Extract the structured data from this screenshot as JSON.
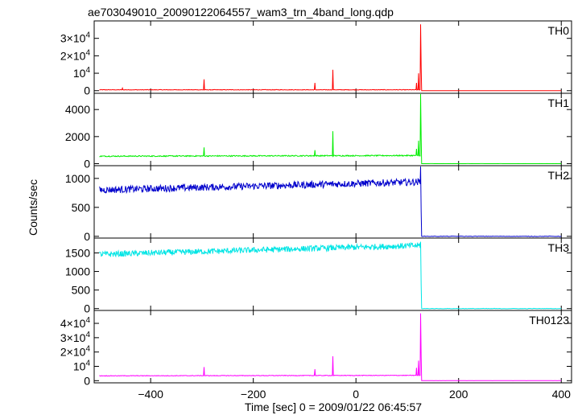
{
  "chart_data": {
    "type": "line",
    "title": "ae703049010_20090122064557_wam3_trn_4band_long.qdp",
    "xlabel": "Time [sec] 0 = 2009/01/22 06:45:57",
    "ylabel": "Counts/sec",
    "xlim": [
      -510,
      420
    ],
    "x_ticks": [
      -400,
      -200,
      0,
      200,
      400
    ],
    "grid": false,
    "panels": [
      {
        "name": "TH0",
        "color": "#ff0000",
        "ylim": [
          -1500,
          40000
        ],
        "y_ticks": [
          {
            "value": 0,
            "base": "0"
          },
          {
            "value": 10000,
            "base": "10",
            "exp": "4"
          },
          {
            "value": 20000,
            "base": "2×10",
            "exp": "4"
          },
          {
            "value": 30000,
            "base": "3×10",
            "exp": "4"
          }
        ],
        "baseline_start": 500,
        "baseline_end": 500,
        "noise": 150,
        "after_level": 0,
        "spikes": [
          {
            "x": -455,
            "y": 1500
          },
          {
            "x": -296,
            "y": 6500
          },
          {
            "x": -80,
            "y": 4500
          },
          {
            "x": -45,
            "y": 12000
          },
          {
            "x": 118,
            "y": 4500
          },
          {
            "x": 122,
            "y": 10000
          },
          {
            "x": 126,
            "y": 38000
          }
        ]
      },
      {
        "name": "TH1",
        "color": "#00ee00",
        "ylim": [
          -150,
          5200
        ],
        "y_ticks": [
          {
            "value": 0,
            "base": "0"
          },
          {
            "value": 2000,
            "base": "2000"
          },
          {
            "value": 4000,
            "base": "4000"
          }
        ],
        "baseline_start": 550,
        "baseline_end": 600,
        "noise": 40,
        "after_level": 0,
        "spikes": [
          {
            "x": -296,
            "y": 1200
          },
          {
            "x": -80,
            "y": 1000
          },
          {
            "x": -45,
            "y": 2400
          },
          {
            "x": 118,
            "y": 1100
          },
          {
            "x": 122,
            "y": 1700
          },
          {
            "x": 126,
            "y": 5300
          }
        ]
      },
      {
        "name": "TH2",
        "color": "#0000cc",
        "ylim": [
          -30,
          1220
        ],
        "y_ticks": [
          {
            "value": 0,
            "base": "0"
          },
          {
            "value": 500,
            "base": "500"
          },
          {
            "value": 1000,
            "base": "1000"
          }
        ],
        "baseline_start": 800,
        "baseline_end": 940,
        "noise": 60,
        "after_level": 0,
        "spikes": [
          {
            "x": 126,
            "y": 1210
          }
        ]
      },
      {
        "name": "TH3",
        "color": "#00e5e5",
        "ylim": [
          -50,
          1900
        ],
        "y_ticks": [
          {
            "value": 0,
            "base": "0"
          },
          {
            "value": 500,
            "base": "500"
          },
          {
            "value": 1000,
            "base": "1000"
          },
          {
            "value": 1500,
            "base": "1500"
          }
        ],
        "baseline_start": 1460,
        "baseline_end": 1700,
        "noise": 80,
        "after_level": 0,
        "spikes": [
          {
            "x": 126,
            "y": 1800
          }
        ]
      },
      {
        "name": "TH0123",
        "color": "#ff00ff",
        "ylim": [
          -1500,
          49000
        ],
        "y_ticks": [
          {
            "value": 0,
            "base": "0"
          },
          {
            "value": 10000,
            "base": "10",
            "exp": "4"
          },
          {
            "value": 20000,
            "base": "2×10",
            "exp": "4"
          },
          {
            "value": 30000,
            "base": "3×10",
            "exp": "4"
          },
          {
            "value": 40000,
            "base": "4×10",
            "exp": "4"
          }
        ],
        "baseline_start": 3400,
        "baseline_end": 3700,
        "noise": 200,
        "after_level": 0,
        "spikes": [
          {
            "x": -296,
            "y": 9500
          },
          {
            "x": -80,
            "y": 8000
          },
          {
            "x": -45,
            "y": 17000
          },
          {
            "x": 118,
            "y": 9000
          },
          {
            "x": 122,
            "y": 14000
          },
          {
            "x": 126,
            "y": 47000
          }
        ]
      }
    ]
  }
}
